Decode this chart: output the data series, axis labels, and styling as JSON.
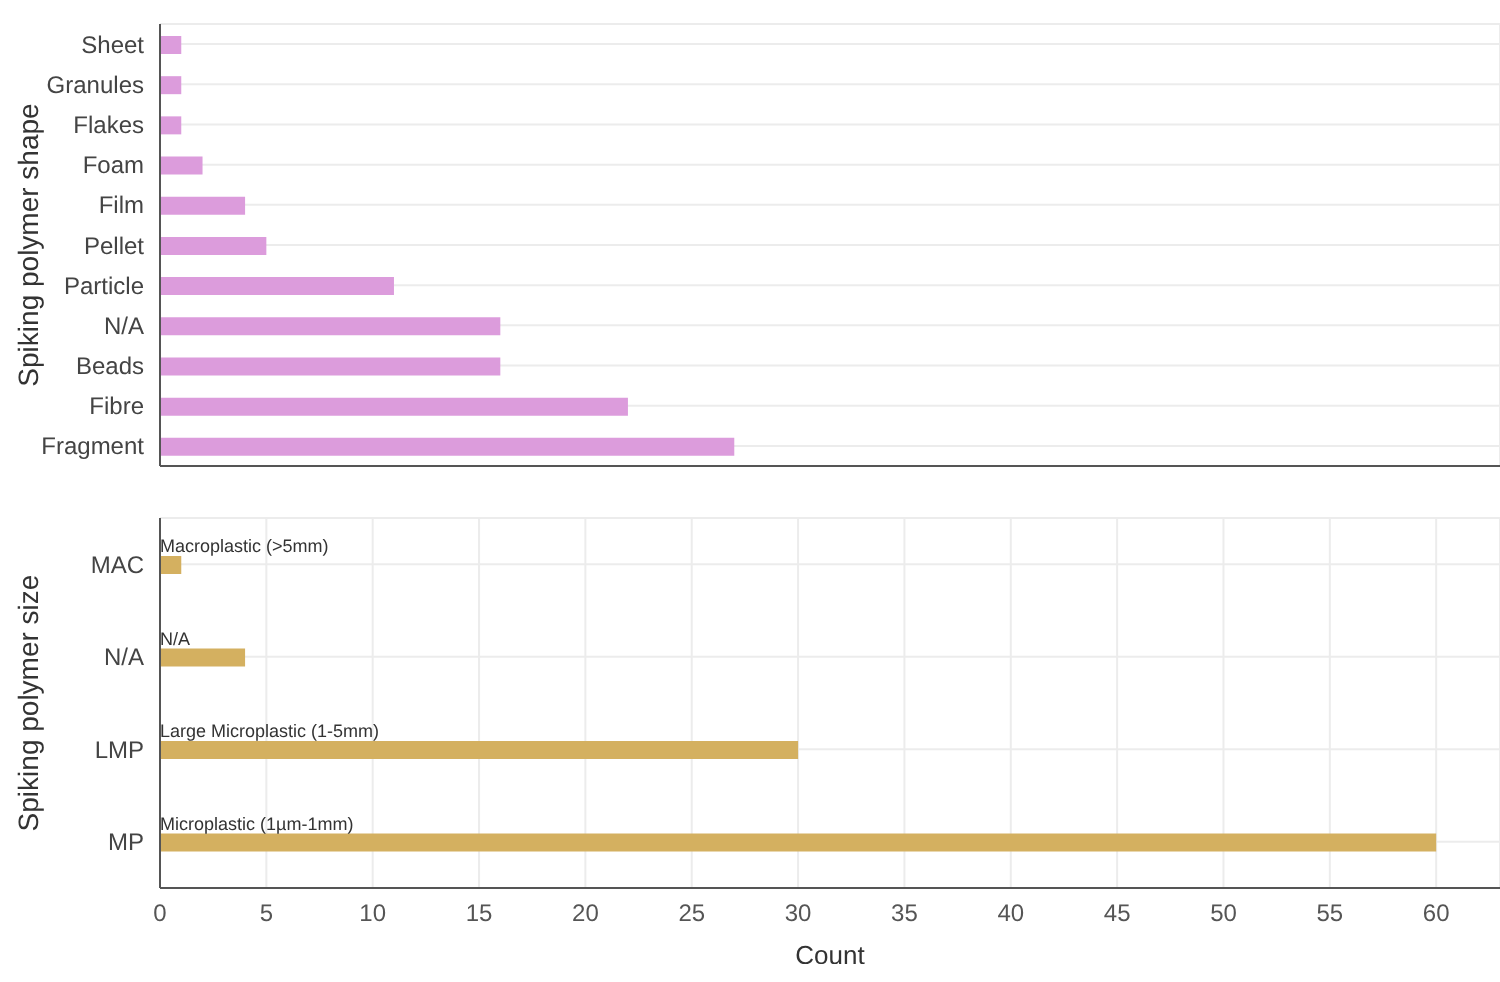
{
  "chart_data": [
    {
      "type": "bar",
      "orientation": "horizontal",
      "ylabel": "Spiking polymer shape",
      "categories": [
        "Sheet",
        "Granules",
        "Flakes",
        "Foam",
        "Film",
        "Pellet",
        "Particle",
        "N/A",
        "Beads",
        "Fibre",
        "Fragment"
      ],
      "values": [
        1,
        1,
        1,
        2,
        4,
        5,
        11,
        16,
        16,
        22,
        27
      ],
      "color": "#dc9cdc",
      "xlim": [
        0,
        63
      ],
      "xticks": [
        0,
        5,
        10,
        15,
        20,
        25,
        30,
        35,
        40,
        45,
        50,
        55,
        60
      ],
      "grid": true,
      "tick_labels": "y"
    },
    {
      "type": "bar",
      "orientation": "horizontal",
      "ylabel": "Spiking polymer size",
      "xlabel": "Count",
      "categories": [
        "MAC",
        "N/A",
        "LMP",
        "MP"
      ],
      "values": [
        1,
        4,
        30,
        60
      ],
      "color": "#d4b060",
      "xlim": [
        0,
        63
      ],
      "xticks": [
        0,
        5,
        10,
        15,
        20,
        25,
        30,
        35,
        40,
        45,
        50,
        55,
        60
      ],
      "grid": true,
      "annotations": [
        "Macroplastic (>5mm)",
        "N/A",
        "Large Microplastic (1-5mm)",
        "Microplastic (1µm-1mm)"
      ]
    }
  ]
}
